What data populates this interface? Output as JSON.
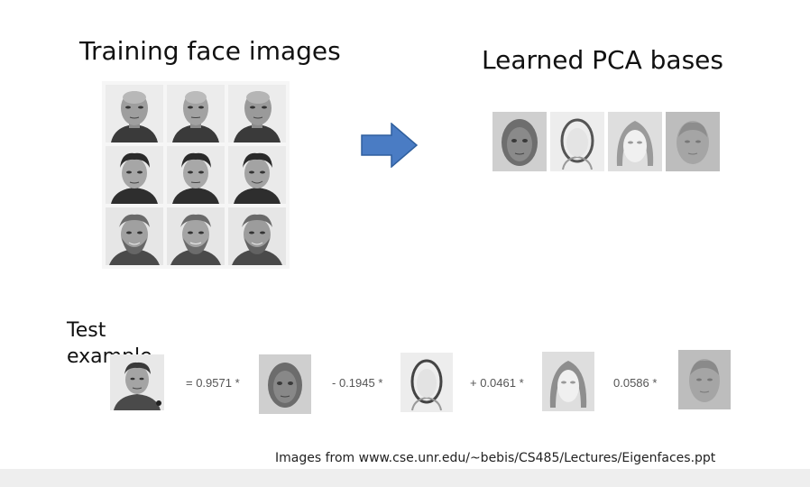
{
  "titles": {
    "training": "Training face images",
    "learned": "Learned PCA bases"
  },
  "icons": {
    "arrow": "right-arrow-icon",
    "arrow_color": "#4a7cc4"
  },
  "test": {
    "label_line1": "Test",
    "label_line2": "example"
  },
  "equation": {
    "terms": [
      {
        "text": "= 0.9571 *"
      },
      {
        "text": "- 0.1945 *"
      },
      {
        "text": "+ 0.0461 *"
      },
      {
        "text": "0.0586 *"
      }
    ]
  },
  "credit": "Images from www.cse.unr.edu/~bebis/CS485/Lectures/Eigenfaces.ppt"
}
